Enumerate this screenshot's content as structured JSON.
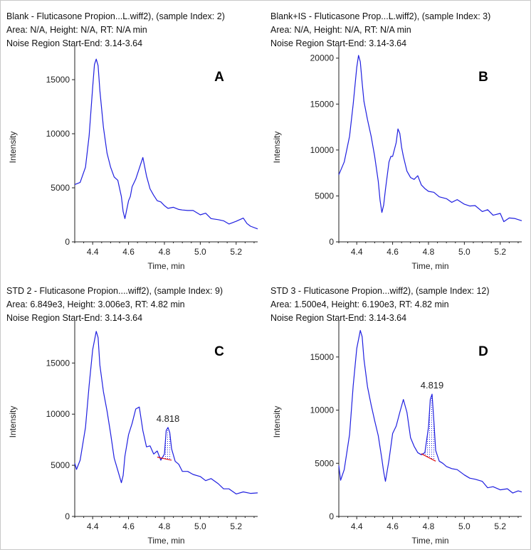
{
  "chart_data": [
    {
      "type": "line",
      "panel_letter": "A",
      "header": [
        "Blank - Fluticasone Propion...L.wiff2), (sample Index: 2)",
        "Area: N/A, Height: N/A, RT: N/A min",
        "Noise Region Start-End: 3.14-3.64"
      ],
      "xlabel": "Time, min",
      "ylabel": "Intensity",
      "xlim": [
        4.3,
        5.32
      ],
      "ylim": [
        0,
        17500
      ],
      "xticks": [
        4.4,
        4.6,
        4.8,
        5.0,
        5.2
      ],
      "xtick_labels": [
        "4.4",
        "4.6",
        "4.8",
        "5.0",
        "5.2"
      ],
      "yticks": [
        0,
        5000,
        10000,
        15000
      ],
      "ytick_labels": [
        "0",
        "5000",
        "10000",
        "15000"
      ],
      "color": "#1f1fe0",
      "series": [
        {
          "x": [
            4.3,
            4.33,
            4.36,
            4.38,
            4.4,
            4.41,
            4.42,
            4.43,
            4.44,
            4.46,
            4.48,
            4.5,
            4.52,
            4.54,
            4.56,
            4.57,
            4.58,
            4.59,
            4.6,
            4.61,
            4.62,
            4.64,
            4.66,
            4.68,
            4.7,
            4.72,
            4.74,
            4.76,
            4.78,
            4.8,
            4.82,
            4.85,
            4.88,
            4.9,
            4.93,
            4.96,
            5.0,
            5.03,
            5.06,
            5.1,
            5.13,
            5.16,
            5.2,
            5.24,
            5.26,
            5.28,
            5.32
          ],
          "y": [
            5300,
            5500,
            6900,
            9800,
            14300,
            16400,
            16900,
            16300,
            14000,
            10600,
            8200,
            6900,
            6000,
            5700,
            4200,
            2800,
            2150,
            3000,
            3800,
            4200,
            5100,
            5800,
            6800,
            7800,
            6100,
            4900,
            4300,
            3800,
            3700,
            3350,
            3100,
            3200,
            3000,
            2950,
            2900,
            2900,
            2500,
            2650,
            2150,
            2050,
            1950,
            1650,
            1900,
            2200,
            1700,
            1450,
            1200
          ]
        }
      ],
      "peak": null
    },
    {
      "type": "line",
      "panel_letter": "B",
      "header": [
        "Blank+IS - Fluticasone Prop...L.wiff2), (sample Index: 3)",
        "Area: N/A, Height: N/A, RT: N/A min",
        "Noise Region Start-End: 3.14-3.64"
      ],
      "xlabel": "Time, min",
      "ylabel": "Intensity",
      "xlim": [
        4.3,
        5.32
      ],
      "ylim": [
        0,
        20600
      ],
      "xticks": [
        4.4,
        4.6,
        4.8,
        5.0,
        5.2
      ],
      "xtick_labels": [
        "4.4",
        "4.6",
        "4.8",
        "5.0",
        "5.2"
      ],
      "yticks": [
        0,
        5000,
        10000,
        15000,
        20000
      ],
      "ytick_labels": [
        "0",
        "5000",
        "10000",
        "15000",
        "20000"
      ],
      "color": "#1f1fe0",
      "series": [
        {
          "x": [
            4.3,
            4.33,
            4.36,
            4.38,
            4.4,
            4.41,
            4.42,
            4.43,
            4.44,
            4.46,
            4.48,
            4.5,
            4.52,
            4.53,
            4.54,
            4.55,
            4.56,
            4.58,
            4.59,
            4.6,
            4.62,
            4.63,
            4.64,
            4.65,
            4.66,
            4.68,
            4.7,
            4.72,
            4.74,
            4.76,
            4.78,
            4.8,
            4.83,
            4.86,
            4.9,
            4.93,
            4.96,
            5.0,
            5.03,
            5.06,
            5.1,
            5.13,
            5.16,
            5.2,
            5.22,
            5.25,
            5.28,
            5.32
          ],
          "y": [
            7300,
            8700,
            11500,
            15000,
            19000,
            20300,
            19600,
            17300,
            15300,
            13300,
            11500,
            9300,
            6600,
            4500,
            3200,
            4000,
            5700,
            8700,
            9300,
            9300,
            10800,
            12300,
            11800,
            10300,
            9300,
            7700,
            7000,
            6800,
            7200,
            6200,
            5800,
            5500,
            5400,
            4900,
            4700,
            4300,
            4600,
            4100,
            3900,
            3950,
            3300,
            3500,
            2900,
            3100,
            2200,
            2600,
            2550,
            2300
          ]
        }
      ],
      "peak": null
    },
    {
      "type": "line",
      "panel_letter": "C",
      "header": [
        "STD 2 - Fluticasone Propion....wiff2), (sample Index: 9)",
        "Area: 6.849e3, Height: 3.006e3, RT: 4.82 min",
        "Noise Region Start-End: 3.14-3.64"
      ],
      "xlabel": "Time, min",
      "ylabel": "Intensity",
      "xlim": [
        4.3,
        5.32
      ],
      "ylim": [
        0,
        18500
      ],
      "xticks": [
        4.4,
        4.6,
        4.8,
        5.0,
        5.2
      ],
      "xtick_labels": [
        "4.4",
        "4.6",
        "4.8",
        "5.0",
        "5.2"
      ],
      "yticks": [
        0,
        5000,
        10000,
        15000
      ],
      "ytick_labels": [
        "0",
        "5000",
        "10000",
        "15000"
      ],
      "color": "#1f1fe0",
      "series": [
        {
          "x": [
            4.3,
            4.31,
            4.33,
            4.36,
            4.38,
            4.4,
            4.42,
            4.43,
            4.44,
            4.46,
            4.48,
            4.5,
            4.52,
            4.54,
            4.56,
            4.57,
            4.58,
            4.6,
            4.62,
            4.64,
            4.66,
            4.68,
            4.7,
            4.72,
            4.74,
            4.76,
            4.78,
            4.8,
            4.81,
            4.82,
            4.83,
            4.84,
            4.86,
            4.88,
            4.9,
            4.93,
            4.96,
            5.0,
            5.03,
            5.06,
            5.1,
            5.13,
            5.16,
            5.2,
            5.24,
            5.28,
            5.32
          ],
          "y": [
            5200,
            4600,
            5500,
            8700,
            12800,
            16300,
            18100,
            17500,
            14800,
            12200,
            10300,
            8100,
            5700,
            4500,
            3300,
            4000,
            5900,
            8000,
            9100,
            10500,
            10700,
            8400,
            6800,
            6900,
            6100,
            6400,
            5500,
            6100,
            8400,
            8700,
            8200,
            6600,
            5400,
            5100,
            4400,
            4400,
            4100,
            3900,
            3500,
            3700,
            3200,
            2700,
            2700,
            2200,
            2400,
            2250,
            2300
          ]
        }
      ],
      "peak": {
        "label": "4.818",
        "start": 4.76,
        "apex": 4.82,
        "end": 4.84,
        "base_start": 5800,
        "base_end": 5500
      }
    },
    {
      "type": "line",
      "panel_letter": "D",
      "header": [
        "STD 3 - Fluticasone Propion...wiff2), (sample Index: 12)",
        "Area: 1.500e4, Height: 6.190e3, RT: 4.82 min",
        "Noise Region Start-End: 3.14-3.64"
      ],
      "xlabel": "Time, min",
      "ylabel": "Intensity",
      "xlim": [
        4.3,
        5.32
      ],
      "ylim": [
        0,
        17800
      ],
      "xticks": [
        4.4,
        4.6,
        4.8,
        5.0,
        5.2
      ],
      "xtick_labels": [
        "4.4",
        "4.6",
        "4.8",
        "5.0",
        "5.2"
      ],
      "yticks": [
        0,
        5000,
        10000,
        15000
      ],
      "ytick_labels": [
        "0",
        "5000",
        "10000",
        "15000"
      ],
      "color": "#1f1fe0",
      "series": [
        {
          "x": [
            4.3,
            4.31,
            4.33,
            4.36,
            4.38,
            4.4,
            4.42,
            4.43,
            4.44,
            4.46,
            4.48,
            4.5,
            4.52,
            4.54,
            4.55,
            4.56,
            4.58,
            4.6,
            4.62,
            4.64,
            4.66,
            4.68,
            4.7,
            4.72,
            4.74,
            4.76,
            4.78,
            4.8,
            4.81,
            4.82,
            4.83,
            4.84,
            4.86,
            4.88,
            4.9,
            4.93,
            4.96,
            5.0,
            5.03,
            5.06,
            5.1,
            5.13,
            5.16,
            5.2,
            5.24,
            5.27,
            5.3,
            5.32
          ],
          "y": [
            4800,
            3400,
            4400,
            7700,
            12300,
            15800,
            17500,
            16900,
            14800,
            12200,
            10500,
            9000,
            7600,
            5400,
            4200,
            3300,
            5300,
            7800,
            8500,
            9800,
            11000,
            9800,
            7400,
            6600,
            6000,
            5800,
            6000,
            8400,
            11000,
            11500,
            9000,
            6200,
            5200,
            5000,
            4700,
            4500,
            4400,
            3900,
            3600,
            3500,
            3300,
            2700,
            2800,
            2500,
            2600,
            2200,
            2400,
            2300
          ]
        }
      ],
      "peak": {
        "label": "4.819",
        "start": 4.76,
        "apex": 4.82,
        "end": 4.84,
        "base_start": 5900,
        "base_end": 5200
      }
    }
  ]
}
